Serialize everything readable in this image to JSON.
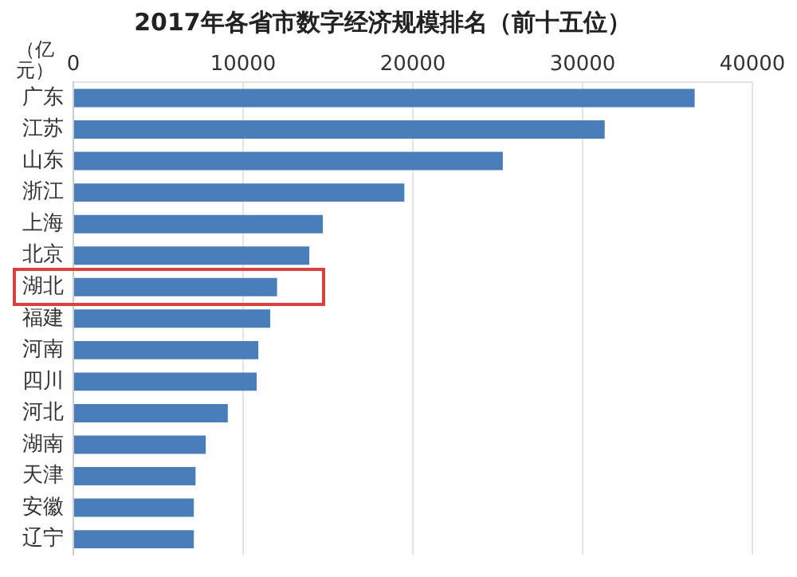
{
  "chart_data": {
    "type": "bar",
    "orientation": "horizontal",
    "title": "2017年各省市数字经济规模排名（前十五位）",
    "xlabel": "（亿元）",
    "categories": [
      "广东",
      "江苏",
      "山东",
      "浙江",
      "上海",
      "北京",
      "湖北",
      "福建",
      "河南",
      "四川",
      "河北",
      "湖南",
      "天津",
      "安徽",
      "辽宁"
    ],
    "values": [
      36600,
      31300,
      25300,
      19500,
      14700,
      13900,
      12000,
      11600,
      10900,
      10800,
      9100,
      7800,
      7200,
      7100,
      7100
    ],
    "color": "#4a7ebb",
    "xlim": [
      0,
      40000
    ],
    "xticks": [
      0,
      10000,
      20000,
      30000,
      40000
    ],
    "grid": "x",
    "legend": false
  }
}
